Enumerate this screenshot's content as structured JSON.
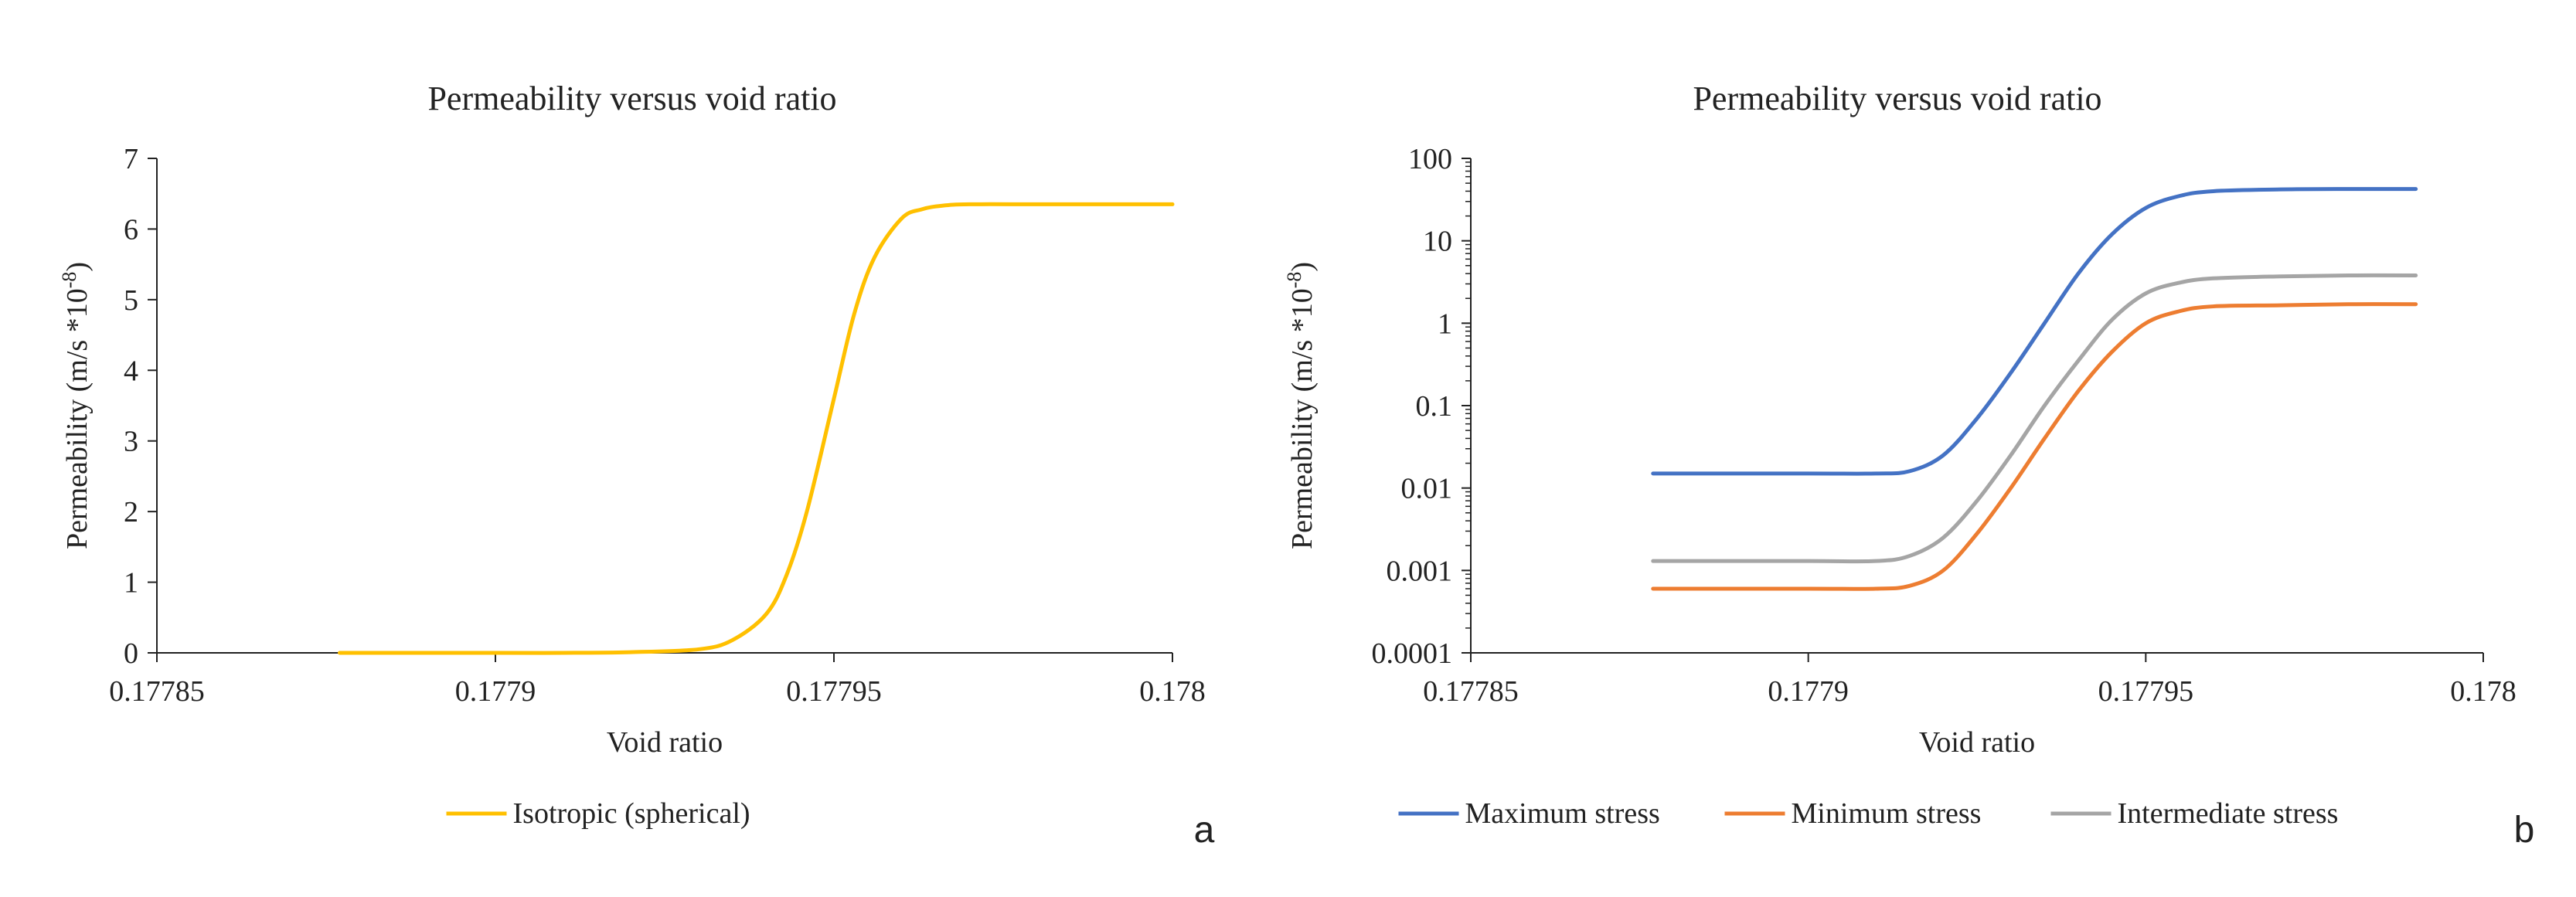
{
  "chart_data": [
    {
      "type": "line",
      "panel_letter": "a",
      "title": "Permeability  versus  void  ratio",
      "xlabel": "Void ratio",
      "ylabel": "Permeability  (m/s *10",
      "ylabel_sup": "-8",
      "ylabel_close": ")",
      "xlim": [
        0.17785,
        0.178
      ],
      "ylim": [
        0,
        7
      ],
      "yscale": "linear",
      "x_ticks": [
        0.17785,
        0.1779,
        0.17795,
        0.178
      ],
      "x_tick_labels": [
        "0.17785",
        "0.1779",
        "0.17795",
        "0.178"
      ],
      "y_ticks": [
        0,
        1,
        2,
        3,
        4,
        5,
        6,
        7
      ],
      "y_tick_labels": [
        "0",
        "1",
        "2",
        "3",
        "4",
        "5",
        "6",
        "7"
      ],
      "legend_position": "bottom",
      "series": [
        {
          "name": "Isotropic (spherical)",
          "color": "#FFC000",
          "x": [
            0.177877,
            0.1779,
            0.17791,
            0.17792,
            0.17793,
            0.177935,
            0.17794,
            0.177943,
            0.177946,
            0.17795,
            0.177953,
            0.177956,
            0.17796,
            0.177963,
            0.177966,
            0.17797,
            0.17798,
            0.17799,
            0.178
          ],
          "y": [
            0.0,
            0.0,
            0.0,
            0.01,
            0.05,
            0.18,
            0.55,
            1.1,
            2.0,
            3.6,
            4.8,
            5.6,
            6.15,
            6.28,
            6.33,
            6.35,
            6.35,
            6.35,
            6.35
          ]
        }
      ]
    },
    {
      "type": "line",
      "panel_letter": "b",
      "title": "Permeability  versus  void  ratio",
      "xlabel": "Void ratio",
      "ylabel": "Permeability  (m/s *10",
      "ylabel_sup": "-8",
      "ylabel_close": ")",
      "xlim": [
        0.17785,
        0.178
      ],
      "ylim": [
        0.0001,
        100
      ],
      "yscale": "log",
      "x_ticks": [
        0.17785,
        0.1779,
        0.17795,
        0.178
      ],
      "x_tick_labels": [
        "0.17785",
        "0.1779",
        "0.17795",
        "0.178"
      ],
      "y_ticks": [
        0.0001,
        0.001,
        0.01,
        0.1,
        1,
        10,
        100
      ],
      "y_tick_labels": [
        "0.0001",
        "0.001",
        "0.01",
        "0.1",
        "1",
        "10",
        "100"
      ],
      "legend_position": "bottom",
      "series": [
        {
          "name": "Maximum stress",
          "color": "#4472C4",
          "x": [
            0.177877,
            0.1779,
            0.17791,
            0.177915,
            0.17792,
            0.177925,
            0.17793,
            0.177935,
            0.17794,
            0.177945,
            0.17795,
            0.177955,
            0.17796,
            0.17797,
            0.17798,
            0.17799
          ],
          "y": [
            0.015,
            0.015,
            0.015,
            0.016,
            0.025,
            0.07,
            0.25,
            1.0,
            4.0,
            12.0,
            25.0,
            35.0,
            40.0,
            42.0,
            42.5,
            42.5
          ]
        },
        {
          "name": "Minimum stress",
          "color": "#ED7D31",
          "x": [
            0.177877,
            0.1779,
            0.17791,
            0.177915,
            0.17792,
            0.177925,
            0.17793,
            0.177935,
            0.17794,
            0.177945,
            0.17795,
            0.177955,
            0.17796,
            0.17797,
            0.17798,
            0.17799
          ],
          "y": [
            0.0006,
            0.0006,
            0.0006,
            0.00065,
            0.001,
            0.0028,
            0.01,
            0.04,
            0.15,
            0.45,
            1.0,
            1.4,
            1.6,
            1.65,
            1.7,
            1.7
          ]
        },
        {
          "name": "Intermediate stress",
          "color": "#A5A5A5",
          "x": [
            0.177877,
            0.1779,
            0.17791,
            0.177915,
            0.17792,
            0.177925,
            0.17793,
            0.177935,
            0.17794,
            0.177945,
            0.17795,
            0.177955,
            0.17796,
            0.17797,
            0.17798,
            0.17799
          ],
          "y": [
            0.0013,
            0.0013,
            0.0013,
            0.0015,
            0.0025,
            0.007,
            0.025,
            0.1,
            0.35,
            1.1,
            2.3,
            3.1,
            3.5,
            3.7,
            3.8,
            3.8
          ]
        }
      ]
    }
  ]
}
